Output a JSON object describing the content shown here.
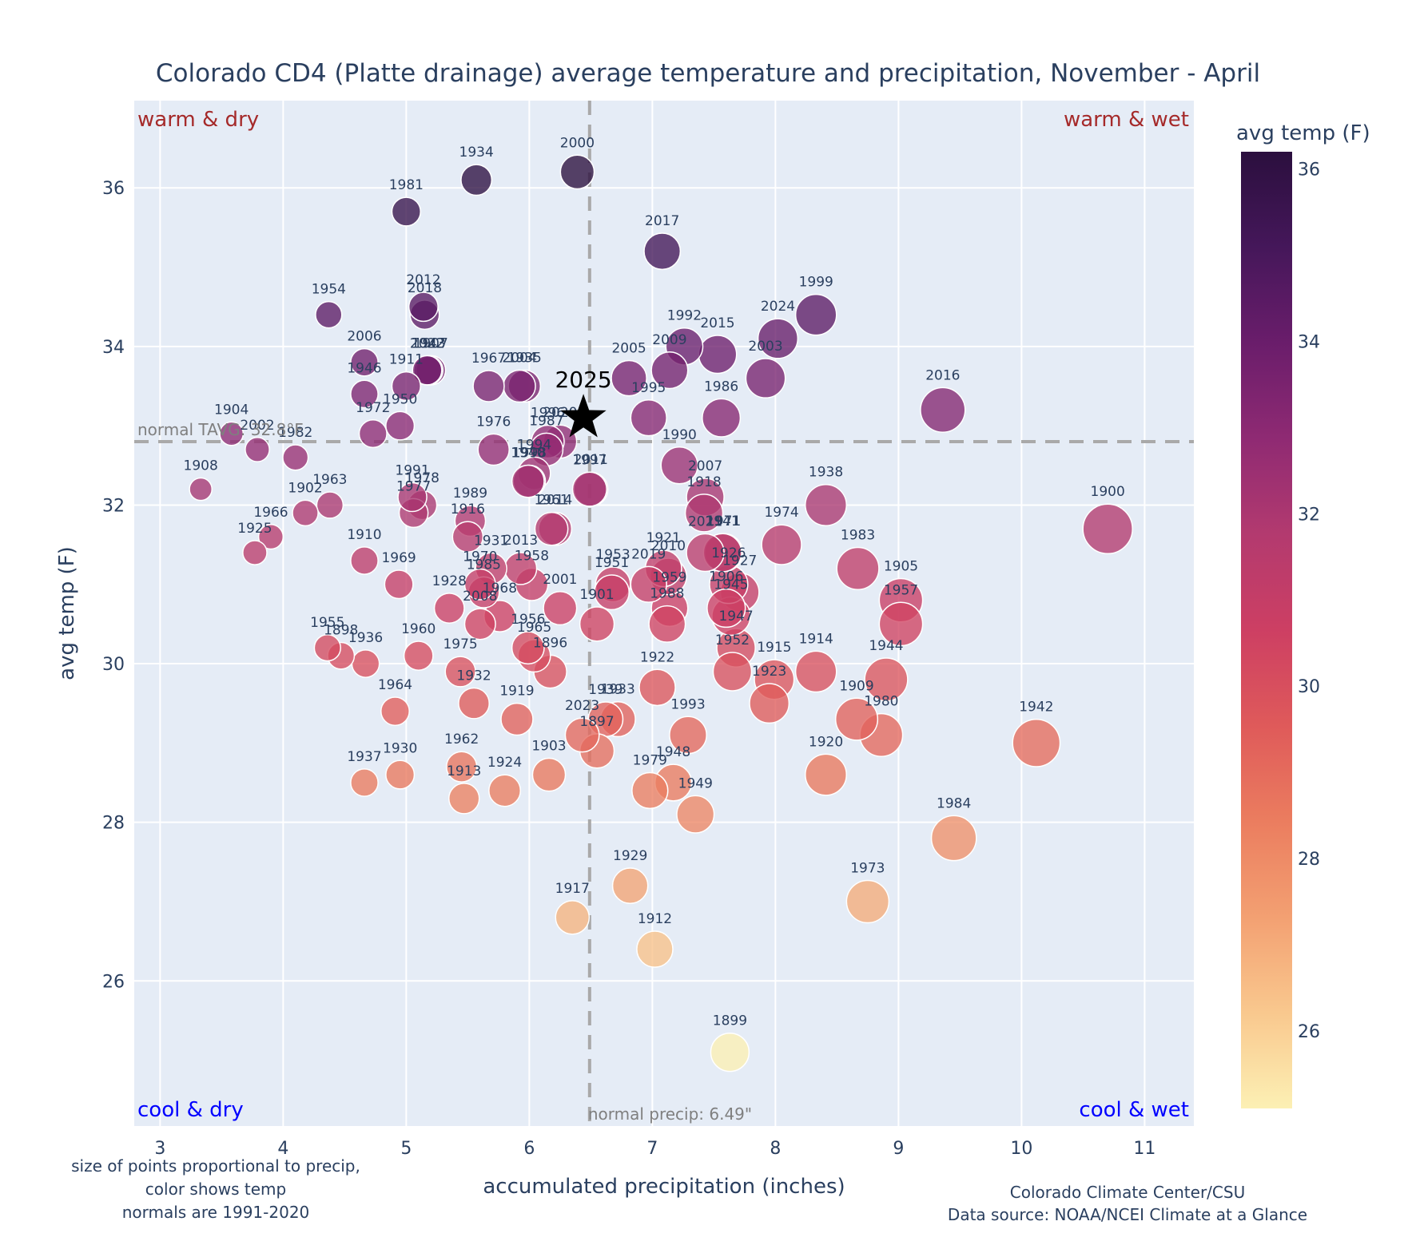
{
  "chart_data": {
    "type": "scatter",
    "title": "Colorado CD4 (Platte drainage) average temperature and precipitation, November - April",
    "xlabel": "accumulated precipitation (inches)",
    "ylabel": "avg temp (F)",
    "xlim": [
      2.79,
      11.4
    ],
    "ylim": [
      24.17,
      37.1
    ],
    "xticks": [
      3,
      4,
      5,
      6,
      7,
      8,
      9,
      10,
      11
    ],
    "yticks": [
      26,
      28,
      30,
      32,
      34,
      36
    ],
    "grid": true,
    "size_encoding": "precip",
    "color_encoding": "avg temp",
    "colorbar": {
      "title": "avg temp (F)",
      "range": [
        25.1,
        36.2
      ],
      "ticks": [
        26,
        28,
        30,
        32,
        34,
        36
      ],
      "colorscale": [
        "#fcf0b4",
        "#f9c88e",
        "#f3a072",
        "#eb7d5f",
        "#df5a5a",
        "#cd3f63",
        "#b33a6f",
        "#8f2a73",
        "#6a1d6b",
        "#45175a",
        "#2b0f3e"
      ]
    },
    "normals": {
      "temp": 32.8,
      "precip": 6.49,
      "temp_label": "normal TAVG: 32.8°F",
      "precip_label": "normal precip: 6.49\""
    },
    "quadrant_labels": {
      "top_left": "warm & dry",
      "top_right": "warm & wet",
      "bottom_left": "cool & dry",
      "bottom_right": "cool & wet",
      "warm_color": "#a52a2a",
      "cool_color": "#0000ff"
    },
    "highlight": {
      "year": "2025",
      "x": 6.44,
      "y": 33.1,
      "marker": "star",
      "color": "#000000"
    },
    "points": [
      {
        "year": "1896",
        "x": 6.17,
        "y": 29.9
      },
      {
        "year": "1897",
        "x": 6.55,
        "y": 28.9
      },
      {
        "year": "1898",
        "x": 4.47,
        "y": 30.1
      },
      {
        "year": "1899",
        "x": 7.63,
        "y": 25.1
      },
      {
        "year": "1900",
        "x": 10.7,
        "y": 31.7
      },
      {
        "year": "1901",
        "x": 6.55,
        "y": 30.5
      },
      {
        "year": "1902",
        "x": 4.18,
        "y": 31.9
      },
      {
        "year": "1903",
        "x": 6.16,
        "y": 28.6
      },
      {
        "year": "1904",
        "x": 3.58,
        "y": 32.9
      },
      {
        "year": "1905",
        "x": 9.02,
        "y": 30.8
      },
      {
        "year": "1906",
        "x": 7.6,
        "y": 30.7
      },
      {
        "year": "1907",
        "x": 5.2,
        "y": 33.7
      },
      {
        "year": "1908",
        "x": 3.33,
        "y": 32.2
      },
      {
        "year": "1909",
        "x": 8.66,
        "y": 29.3
      },
      {
        "year": "1910",
        "x": 4.66,
        "y": 31.3
      },
      {
        "year": "1911",
        "x": 5.0,
        "y": 33.5
      },
      {
        "year": "1912",
        "x": 7.02,
        "y": 26.4
      },
      {
        "year": "1913",
        "x": 5.47,
        "y": 28.3
      },
      {
        "year": "1914",
        "x": 8.33,
        "y": 29.9
      },
      {
        "year": "1915",
        "x": 7.99,
        "y": 29.8
      },
      {
        "year": "1916",
        "x": 5.5,
        "y": 31.6
      },
      {
        "year": "1917",
        "x": 6.35,
        "y": 26.8
      },
      {
        "year": "1918",
        "x": 7.42,
        "y": 31.9
      },
      {
        "year": "1919",
        "x": 5.9,
        "y": 29.3
      },
      {
        "year": "1920",
        "x": 8.41,
        "y": 28.6
      },
      {
        "year": "1921",
        "x": 7.09,
        "y": 31.2
      },
      {
        "year": "1922",
        "x": 7.04,
        "y": 29.7
      },
      {
        "year": "1923",
        "x": 7.95,
        "y": 29.5
      },
      {
        "year": "1924",
        "x": 5.8,
        "y": 28.4
      },
      {
        "year": "1925",
        "x": 3.77,
        "y": 31.4
      },
      {
        "year": "1926",
        "x": 7.62,
        "y": 31.0
      },
      {
        "year": "1927",
        "x": 7.71,
        "y": 30.9
      },
      {
        "year": "1928",
        "x": 5.35,
        "y": 30.7
      },
      {
        "year": "1929",
        "x": 6.82,
        "y": 27.2
      },
      {
        "year": "1930",
        "x": 4.95,
        "y": 28.6
      },
      {
        "year": "1931",
        "x": 5.69,
        "y": 31.2
      },
      {
        "year": "1932",
        "x": 5.55,
        "y": 29.5
      },
      {
        "year": "1933",
        "x": 6.72,
        "y": 29.3
      },
      {
        "year": "1934",
        "x": 5.57,
        "y": 36.1
      },
      {
        "year": "1935",
        "x": 5.96,
        "y": 33.5
      },
      {
        "year": "1936",
        "x": 4.67,
        "y": 30.0
      },
      {
        "year": "1937",
        "x": 4.66,
        "y": 28.5
      },
      {
        "year": "1938",
        "x": 8.41,
        "y": 32.0
      },
      {
        "year": "1939",
        "x": 6.62,
        "y": 29.3
      },
      {
        "year": "1940",
        "x": 5.99,
        "y": 32.3
      },
      {
        "year": "1941",
        "x": 7.57,
        "y": 31.4
      },
      {
        "year": "1942",
        "x": 10.12,
        "y": 29.0
      },
      {
        "year": "1943",
        "x": 5.18,
        "y": 33.7
      },
      {
        "year": "1944",
        "x": 8.9,
        "y": 29.8
      },
      {
        "year": "1945",
        "x": 7.64,
        "y": 30.6
      },
      {
        "year": "1946",
        "x": 4.66,
        "y": 33.4
      },
      {
        "year": "1947",
        "x": 7.68,
        "y": 30.2
      },
      {
        "year": "1948",
        "x": 7.17,
        "y": 28.5
      },
      {
        "year": "1949",
        "x": 7.35,
        "y": 28.1
      },
      {
        "year": "1950",
        "x": 4.95,
        "y": 33.0
      },
      {
        "year": "1951",
        "x": 6.67,
        "y": 30.9
      },
      {
        "year": "1952",
        "x": 7.65,
        "y": 29.9
      },
      {
        "year": "1953",
        "x": 6.68,
        "y": 31.0
      },
      {
        "year": "1954",
        "x": 4.37,
        "y": 34.4
      },
      {
        "year": "1955",
        "x": 4.36,
        "y": 30.2
      },
      {
        "year": "1956",
        "x": 5.99,
        "y": 30.2
      },
      {
        "year": "1957",
        "x": 9.02,
        "y": 30.5
      },
      {
        "year": "1958",
        "x": 6.02,
        "y": 31.0
      },
      {
        "year": "1959",
        "x": 7.14,
        "y": 30.7
      },
      {
        "year": "1960",
        "x": 5.1,
        "y": 30.1
      },
      {
        "year": "1961",
        "x": 6.18,
        "y": 31.7
      },
      {
        "year": "1962",
        "x": 5.45,
        "y": 28.7
      },
      {
        "year": "1963",
        "x": 4.38,
        "y": 32.0
      },
      {
        "year": "1964",
        "x": 4.91,
        "y": 29.4
      },
      {
        "year": "1965",
        "x": 6.04,
        "y": 30.1
      },
      {
        "year": "1966",
        "x": 3.9,
        "y": 31.6
      },
      {
        "year": "1967",
        "x": 5.67,
        "y": 33.5
      },
      {
        "year": "1968",
        "x": 5.76,
        "y": 30.6
      },
      {
        "year": "1969",
        "x": 4.94,
        "y": 31.0
      },
      {
        "year": "1970",
        "x": 5.6,
        "y": 31.0
      },
      {
        "year": "1971",
        "x": 7.58,
        "y": 31.4
      },
      {
        "year": "1972",
        "x": 4.73,
        "y": 32.9
      },
      {
        "year": "1973",
        "x": 8.75,
        "y": 27.0
      },
      {
        "year": "1974",
        "x": 8.05,
        "y": 31.5
      },
      {
        "year": "1975",
        "x": 5.44,
        "y": 29.9
      },
      {
        "year": "1976",
        "x": 5.71,
        "y": 32.7
      },
      {
        "year": "1977",
        "x": 5.06,
        "y": 31.9
      },
      {
        "year": "1978",
        "x": 5.13,
        "y": 32.0
      },
      {
        "year": "1979",
        "x": 6.98,
        "y": 28.4
      },
      {
        "year": "1980",
        "x": 8.86,
        "y": 29.1
      },
      {
        "year": "1981",
        "x": 5.0,
        "y": 35.7
      },
      {
        "year": "1982",
        "x": 4.1,
        "y": 32.6
      },
      {
        "year": "1983",
        "x": 8.67,
        "y": 31.2
      },
      {
        "year": "1984",
        "x": 9.45,
        "y": 27.8
      },
      {
        "year": "1985",
        "x": 5.63,
        "y": 30.9
      },
      {
        "year": "1986",
        "x": 7.56,
        "y": 33.1
      },
      {
        "year": "1987",
        "x": 6.14,
        "y": 32.7
      },
      {
        "year": "1988",
        "x": 7.12,
        "y": 30.5
      },
      {
        "year": "1989",
        "x": 5.52,
        "y": 31.8
      },
      {
        "year": "1990",
        "x": 7.22,
        "y": 32.5
      },
      {
        "year": "1991",
        "x": 5.05,
        "y": 32.1
      },
      {
        "year": "1992",
        "x": 7.26,
        "y": 34.0
      },
      {
        "year": "1993",
        "x": 7.29,
        "y": 29.1
      },
      {
        "year": "1994",
        "x": 6.04,
        "y": 32.4
      },
      {
        "year": "1995",
        "x": 6.97,
        "y": 33.1
      },
      {
        "year": "1996",
        "x": 6.15,
        "y": 32.8
      },
      {
        "year": "1997",
        "x": 6.49,
        "y": 32.2
      },
      {
        "year": "1998",
        "x": 6.0,
        "y": 32.3
      },
      {
        "year": "1999",
        "x": 8.33,
        "y": 34.4
      },
      {
        "year": "2000",
        "x": 6.39,
        "y": 36.2
      },
      {
        "year": "2001",
        "x": 6.25,
        "y": 30.7
      },
      {
        "year": "2002",
        "x": 3.79,
        "y": 32.7
      },
      {
        "year": "2003",
        "x": 7.92,
        "y": 33.6
      },
      {
        "year": "2004",
        "x": 5.92,
        "y": 33.5
      },
      {
        "year": "2005",
        "x": 6.81,
        "y": 33.6
      },
      {
        "year": "2006",
        "x": 4.66,
        "y": 33.8
      },
      {
        "year": "2007",
        "x": 7.43,
        "y": 32.1
      },
      {
        "year": "2008",
        "x": 5.6,
        "y": 30.5
      },
      {
        "year": "2009",
        "x": 7.14,
        "y": 33.7
      },
      {
        "year": "2010",
        "x": 7.13,
        "y": 31.1
      },
      {
        "year": "2011",
        "x": 6.5,
        "y": 32.2
      },
      {
        "year": "2012",
        "x": 5.14,
        "y": 34.5
      },
      {
        "year": "2013",
        "x": 5.93,
        "y": 31.2
      },
      {
        "year": "2014",
        "x": 6.21,
        "y": 31.7
      },
      {
        "year": "2015",
        "x": 7.53,
        "y": 33.9
      },
      {
        "year": "2016",
        "x": 9.36,
        "y": 33.2
      },
      {
        "year": "2017",
        "x": 7.08,
        "y": 35.2
      },
      {
        "year": "2018",
        "x": 5.15,
        "y": 34.4
      },
      {
        "year": "2019",
        "x": 6.97,
        "y": 31.0
      },
      {
        "year": "2020",
        "x": 6.25,
        "y": 32.8
      },
      {
        "year": "2021",
        "x": 7.43,
        "y": 31.4
      },
      {
        "year": "2022",
        "x": 5.17,
        "y": 33.7
      },
      {
        "year": "2023",
        "x": 6.43,
        "y": 29.1
      },
      {
        "year": "2024",
        "x": 8.02,
        "y": 34.1
      }
    ]
  },
  "footnotes": {
    "left": [
      "size of points proportional to precip,",
      "color shows temp",
      "normals are 1991-2020"
    ],
    "right": [
      "Colorado Climate Center/CSU",
      "Data source: NOAA/NCEI Climate at a Glance"
    ]
  }
}
